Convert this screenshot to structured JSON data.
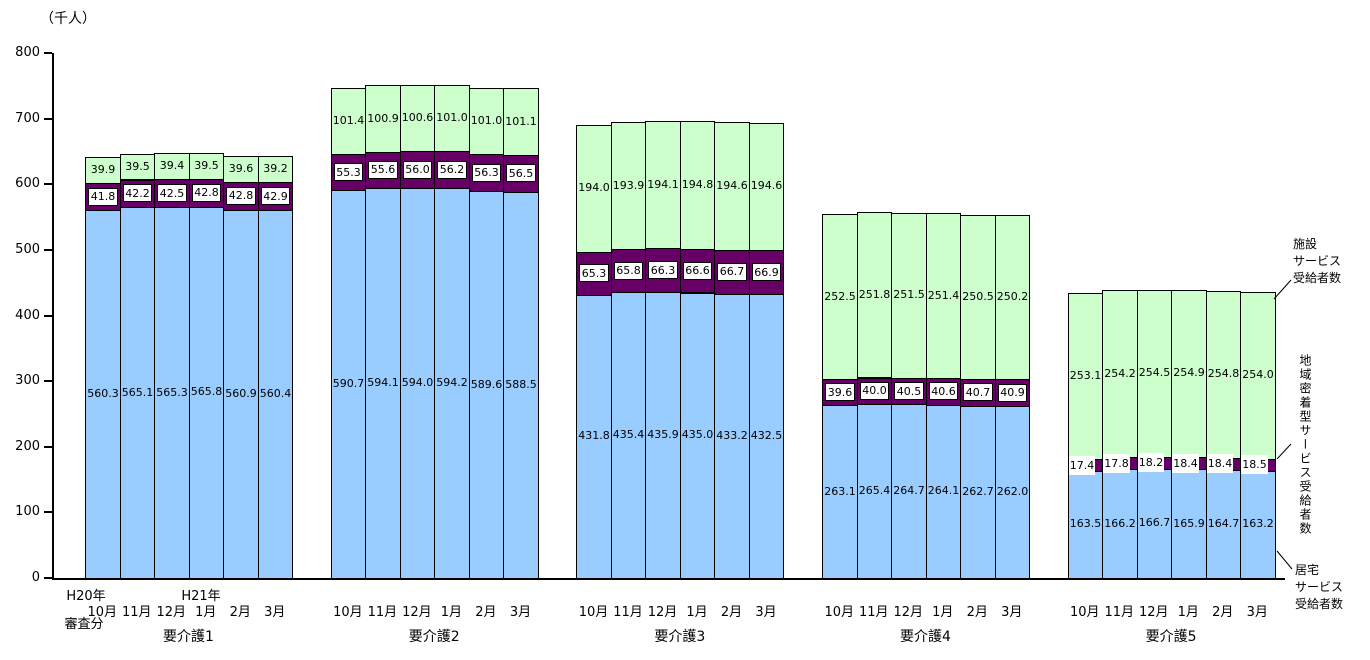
{
  "colors": {
    "home": "#99CCFF",
    "community": "#660066",
    "facility": "#CCFFCC",
    "border": "#000000"
  },
  "x_axis": {
    "era_label_1": "H20年",
    "era_label_2": "H21年",
    "note": "審査分"
  },
  "legend": {
    "facility": "施設\nサービス\n受給者数",
    "community": "地域密着型サービス受給者数",
    "home": "居宅\nサービス\n受給者数"
  },
  "chart_data": {
    "type": "bar",
    "stacked": true,
    "title": "",
    "ylabel": "（千人）",
    "xlabel": "",
    "ylim": [
      0,
      800
    ],
    "y_tick_step": 100,
    "y_tick_labels": [
      "0",
      "100",
      "200",
      "300",
      "400",
      "500",
      "600",
      "700",
      "800"
    ],
    "grid": false,
    "legend_position": "right",
    "categories": [
      "10月",
      "11月",
      "12月",
      "1月",
      "2月",
      "3月"
    ],
    "group_labels": [
      "要介護1",
      "要介護2",
      "要介護3",
      "要介護4",
      "要介護5"
    ],
    "series_order": [
      "home",
      "community",
      "facility"
    ],
    "series_names": {
      "home": "居宅サービス受給者数",
      "community": "地域密着型サービス受給者数",
      "facility": "施設サービス受給者数"
    },
    "groups": [
      {
        "label": "要介護1",
        "home": [
          560.3,
          565.1,
          565.3,
          565.8,
          560.9,
          560.4
        ],
        "community": [
          41.8,
          42.2,
          42.5,
          42.8,
          42.8,
          42.9
        ],
        "facility": [
          39.9,
          39.5,
          39.4,
          39.5,
          39.6,
          39.2
        ]
      },
      {
        "label": "要介護2",
        "home": [
          590.7,
          594.1,
          594.0,
          594.2,
          589.6,
          588.5
        ],
        "community": [
          55.3,
          55.6,
          56.0,
          56.2,
          56.3,
          56.5
        ],
        "facility": [
          101.4,
          100.9,
          100.6,
          101.0,
          101.0,
          101.1
        ]
      },
      {
        "label": "要介護3",
        "home": [
          431.8,
          435.4,
          435.9,
          435.0,
          433.2,
          432.5
        ],
        "community": [
          65.3,
          65.8,
          66.3,
          66.6,
          66.7,
          66.9
        ],
        "facility": [
          194.0,
          193.9,
          194.1,
          194.8,
          194.6,
          194.6
        ]
      },
      {
        "label": "要介護4",
        "home": [
          263.1,
          265.4,
          264.7,
          264.1,
          262.7,
          262.0
        ],
        "community": [
          39.6,
          40.0,
          40.5,
          40.6,
          40.7,
          40.9
        ],
        "facility": [
          252.5,
          251.8,
          251.5,
          251.4,
          250.5,
          250.2
        ]
      },
      {
        "label": "要介護5",
        "home": [
          163.5,
          166.2,
          166.7,
          165.9,
          164.7,
          163.2
        ],
        "community": [
          17.4,
          17.8,
          18.2,
          18.4,
          18.4,
          18.5
        ],
        "facility": [
          253.1,
          254.2,
          254.5,
          254.9,
          254.8,
          254.0
        ]
      }
    ]
  }
}
